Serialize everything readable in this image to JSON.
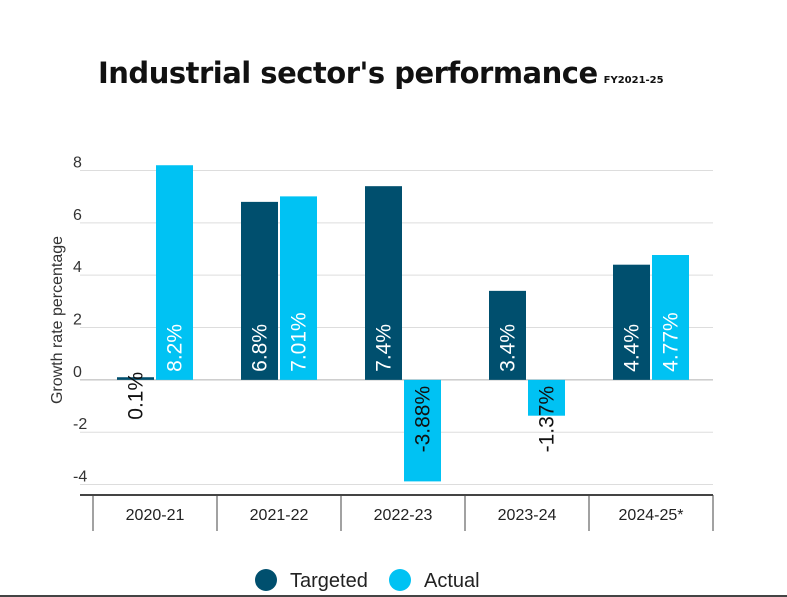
{
  "chart_data": {
    "type": "bar",
    "title": "Industrial sector's performance",
    "subtitle": "FY2021-25",
    "xlabel": "",
    "ylabel": "Growth rate percentage",
    "categories": [
      "2020-21",
      "2021-22",
      "2022-23",
      "2023-24",
      "2024-25*"
    ],
    "series": [
      {
        "name": "Targeted",
        "color": "#004f6e",
        "values": [
          0.1,
          6.8,
          7.4,
          3.4,
          4.4
        ],
        "labels": [
          "0.1%",
          "6.8%",
          "7.4%",
          "3.4%",
          "4.4%"
        ]
      },
      {
        "name": "Actual",
        "color": "#00c2f3",
        "values": [
          8.2,
          7.01,
          -3.88,
          -1.37,
          4.77
        ],
        "labels": [
          "8.2%",
          "7.01%",
          "-3.88%",
          "-1.37%",
          "4.77%"
        ]
      }
    ],
    "ylim": [
      -4.4,
      8.4
    ],
    "yticks": [
      8,
      6,
      4,
      2,
      0,
      -2,
      -4
    ],
    "grid": true,
    "legend_position": "bottom-center"
  }
}
